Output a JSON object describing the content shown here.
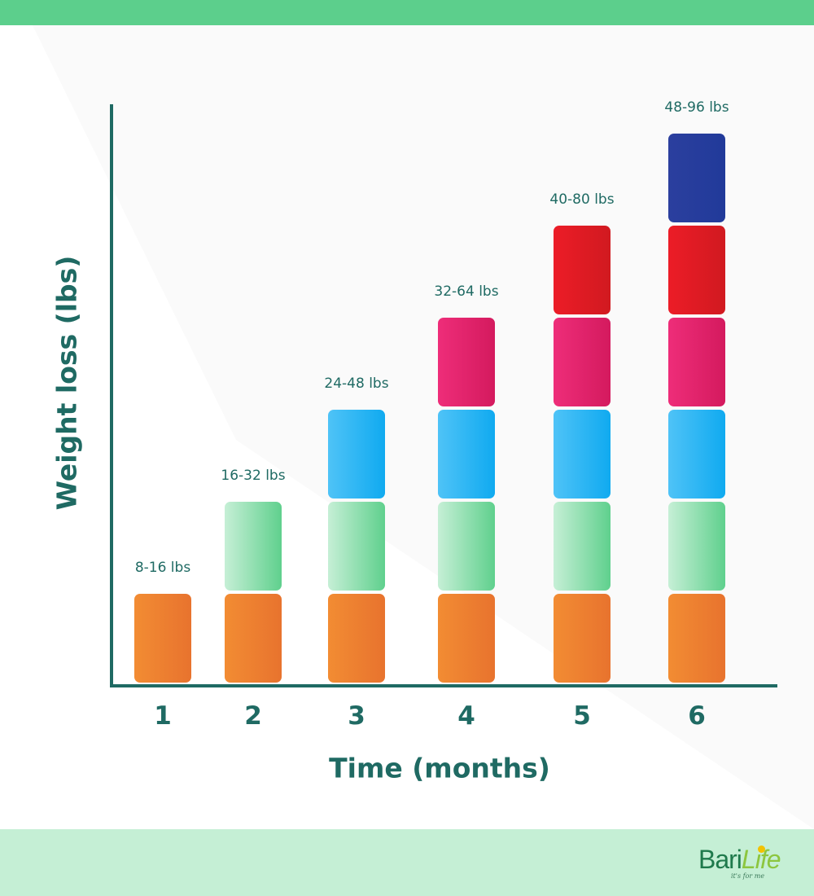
{
  "chart_data": {
    "type": "bar",
    "stacked": true,
    "categories": [
      "1",
      "2",
      "3",
      "4",
      "5",
      "6"
    ],
    "value_labels": [
      "8-16 lbs",
      "16-32 lbs",
      "24-48 lbs",
      "32-64 lbs",
      "40-80 lbs",
      "48-96 lbs"
    ],
    "ranges": [
      [
        8,
        16
      ],
      [
        16,
        32
      ],
      [
        24,
        48
      ],
      [
        32,
        64
      ],
      [
        40,
        80
      ],
      [
        48,
        96
      ]
    ],
    "segments_per_bar": [
      1,
      2,
      3,
      4,
      5,
      6
    ],
    "segment_colors": [
      [
        "#f28c33",
        "#e8732e"
      ],
      [
        "#c6efd6",
        "#5fd08d"
      ],
      [
        "#4fc3f7",
        "#10aaf0"
      ],
      [
        "#ee2d79",
        "#d41a5e"
      ],
      [
        "#ec1c27",
        "#d11a20"
      ],
      [
        "#2b3f9e",
        "#213a9a"
      ]
    ],
    "xlabel": "Time (months)",
    "ylabel": "Weight loss (lbs)",
    "grid": false,
    "legend": "none"
  },
  "brand": {
    "logo_part1": "Bari",
    "logo_part2": "Life",
    "tagline": "it's for me",
    "top_band_color": "#5ccf8c",
    "bottom_band_color": "#c5efd5",
    "text_color": "#1f6a63"
  }
}
